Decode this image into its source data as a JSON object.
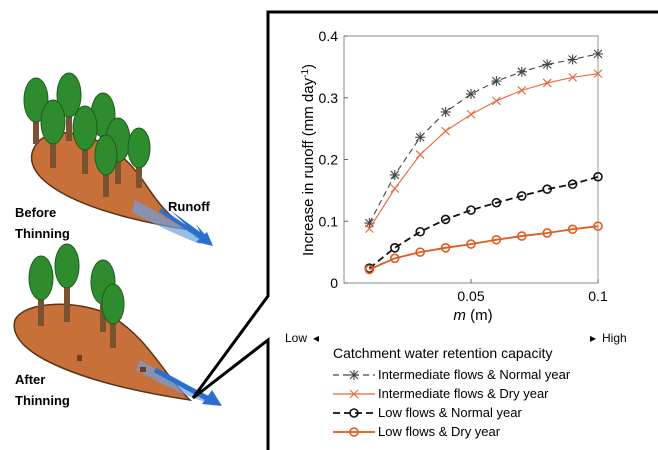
{
  "illustration": {
    "before_label_1": "Before",
    "before_label_2": "Thinning",
    "after_label_1": "After",
    "after_label_2": "Thinning",
    "runoff_label": "Runoff",
    "colors": {
      "canopy": "#2e8b2e",
      "trunk": "#7a5230",
      "soil": "#c8703a",
      "water": "#2a6fd0"
    }
  },
  "chart_data": {
    "type": "line",
    "xlabel_var": "m",
    "xlabel_unit": "(m)",
    "ylabel": "Increase in runoff (mm day",
    "ylabel_sup": "-1",
    "ylabel_close": ")",
    "xlim": [
      0.0,
      0.1
    ],
    "ylim": [
      0,
      0.4
    ],
    "xticks": [
      "0.05",
      "0.1"
    ],
    "xtick_values": [
      0.05,
      0.1
    ],
    "yticks": [
      "0",
      "0.1",
      "0.2",
      "0.3",
      "0.4"
    ],
    "ytick_values": [
      0,
      0.1,
      0.2,
      0.3,
      0.4
    ],
    "capacity_low": "Low",
    "capacity_high": "High",
    "capacity_label": "Catchment water retention capacity",
    "series": [
      {
        "name": "Intermediate flows & Normal year",
        "color": "#444444",
        "marker": "asterisk",
        "dash": "6,4",
        "x": [
          0.01,
          0.02,
          0.03,
          0.04,
          0.05,
          0.06,
          0.07,
          0.08,
          0.09,
          0.1
        ],
        "y": [
          0.097,
          0.175,
          0.236,
          0.277,
          0.306,
          0.327,
          0.342,
          0.354,
          0.362,
          0.371
        ],
        "marker_every": 1
      },
      {
        "name": "Intermediate flows & Dry year",
        "color": "#e8643a",
        "marker": "cross",
        "dash": "",
        "x": [
          0.01,
          0.02,
          0.03,
          0.04,
          0.05,
          0.06,
          0.07,
          0.08,
          0.09,
          0.1
        ],
        "y": [
          0.088,
          0.153,
          0.208,
          0.246,
          0.273,
          0.295,
          0.312,
          0.324,
          0.333,
          0.339
        ],
        "marker_every": 1
      },
      {
        "name": "Low flows & Normal year",
        "color": "#111111",
        "marker": "circle",
        "dash": "7,4",
        "x": [
          0.01,
          0.02,
          0.03,
          0.04,
          0.05,
          0.06,
          0.07,
          0.08,
          0.09,
          0.1
        ],
        "y": [
          0.024,
          0.057,
          0.083,
          0.103,
          0.118,
          0.13,
          0.141,
          0.152,
          0.16,
          0.172
        ],
        "marker_every": 1
      },
      {
        "name": "Low flows & Dry year",
        "color": "#e05a1e",
        "marker": "circle",
        "dash": "",
        "x": [
          0.01,
          0.02,
          0.03,
          0.04,
          0.05,
          0.06,
          0.07,
          0.08,
          0.09,
          0.1
        ],
        "y": [
          0.022,
          0.04,
          0.05,
          0.057,
          0.063,
          0.07,
          0.076,
          0.081,
          0.087,
          0.092
        ],
        "marker_every": 1
      }
    ]
  }
}
